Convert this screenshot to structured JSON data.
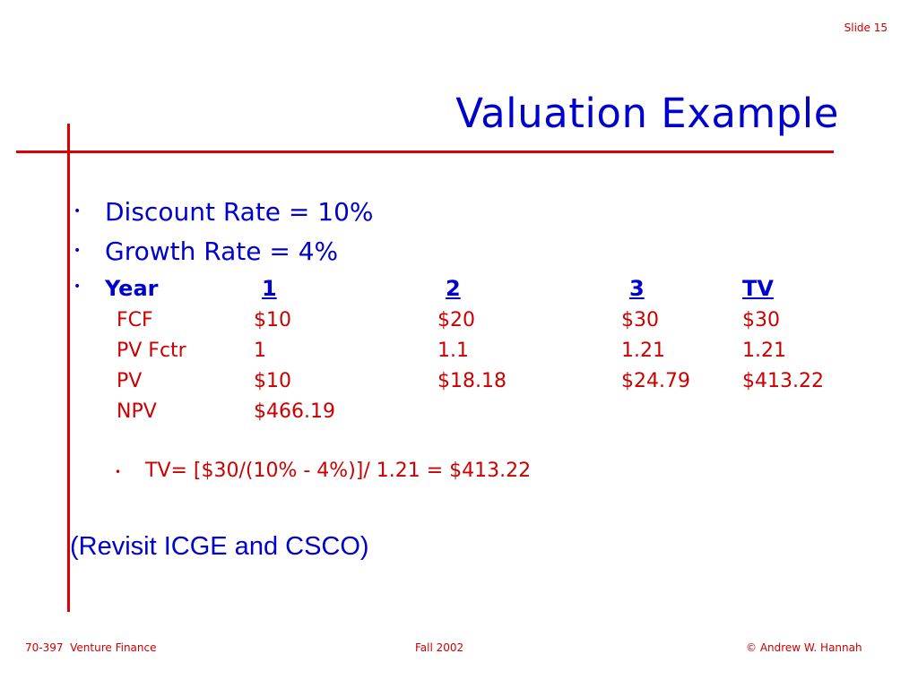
{
  "slide_number": "Slide 15",
  "title": "Valuation Example",
  "bullets": [
    {
      "text": "Discount Rate = 10%"
    },
    {
      "text": "Growth Rate = 4%"
    }
  ],
  "table": {
    "header": {
      "label": "Year",
      "cols": [
        "1",
        "2",
        "3",
        "TV"
      ]
    },
    "rows": [
      {
        "label": "FCF",
        "values": [
          "$10",
          "$20",
          "$30",
          "$30"
        ]
      },
      {
        "label": "PV Fctr",
        "values": [
          "1",
          "1.1",
          "1.21",
          "1.21"
        ]
      },
      {
        "label": "PV",
        "values": [
          "$10",
          "$18.18",
          "$24.79",
          "$413.22"
        ]
      },
      {
        "label": "NPV",
        "values": [
          "$466.19",
          "",
          "",
          ""
        ]
      }
    ]
  },
  "sub_bullet": "TV= [$30/(10% - 4%)]/ 1.21 = $413.22",
  "revisit": "(Revisit ICGE and CSCO)",
  "footer": {
    "left": "70-397  Venture Finance",
    "center": "Fall 2002",
    "right": "© Andrew W. Hannah"
  },
  "colors": {
    "title": "#0000cc",
    "body_red": "#cc0000",
    "rule": "#dd0000"
  }
}
